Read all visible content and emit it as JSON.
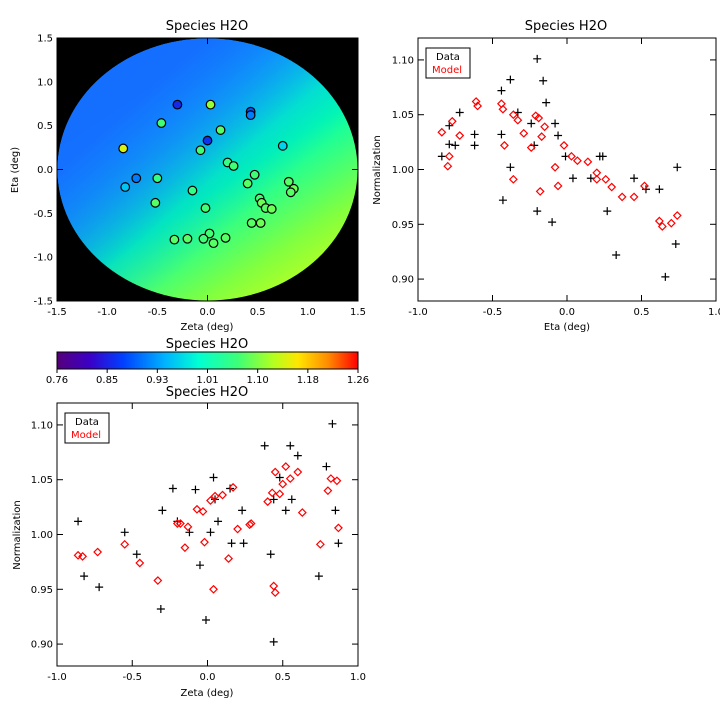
{
  "chart_data": [
    {
      "id": "map",
      "type": "scatter",
      "title": "Species H2O",
      "xlabel": "Zeta (deg)",
      "ylabel": "Eta (deg)",
      "xlim": [
        -1.5,
        1.5
      ],
      "ylim": [
        -1.5,
        1.5
      ],
      "xticks": [
        "-1.5",
        "-1.0",
        "-0.5",
        "0.0",
        "0.5",
        "1.0",
        "1.5"
      ],
      "yticks": [
        "-1.5",
        "-1.0",
        "-0.5",
        "0.0",
        "0.5",
        "1.0",
        "1.5"
      ],
      "background_field": "smooth gradient of normalization inside a circular field of radius ~1.5 deg",
      "points": [
        {
          "x": -0.3,
          "y": 0.74,
          "v": 0.85
        },
        {
          "x": 0.03,
          "y": 0.74,
          "v": 1.08
        },
        {
          "x": 0.43,
          "y": 0.66,
          "v": 0.88
        },
        {
          "x": 0.43,
          "y": 0.62,
          "v": 0.9
        },
        {
          "x": -0.46,
          "y": 0.53,
          "v": 1.04
        },
        {
          "x": 0.13,
          "y": 0.45,
          "v": 1.05
        },
        {
          "x": 0.0,
          "y": 0.33,
          "v": 0.86
        },
        {
          "x": -0.07,
          "y": 0.22,
          "v": 1.04
        },
        {
          "x": 0.75,
          "y": 0.27,
          "v": 0.95
        },
        {
          "x": -0.84,
          "y": 0.24,
          "v": 1.12
        },
        {
          "x": 0.2,
          "y": 0.08,
          "v": 1.03
        },
        {
          "x": 0.26,
          "y": 0.04,
          "v": 1.04
        },
        {
          "x": 0.47,
          "y": -0.06,
          "v": 1.04
        },
        {
          "x": -0.5,
          "y": -0.1,
          "v": 1.03
        },
        {
          "x": -0.71,
          "y": -0.1,
          "v": 0.9
        },
        {
          "x": 0.81,
          "y": -0.14,
          "v": 1.05
        },
        {
          "x": 0.4,
          "y": -0.16,
          "v": 1.05
        },
        {
          "x": -0.82,
          "y": -0.2,
          "v": 0.94
        },
        {
          "x": -0.15,
          "y": -0.24,
          "v": 1.03
        },
        {
          "x": 0.86,
          "y": -0.22,
          "v": 1.06
        },
        {
          "x": 0.83,
          "y": -0.26,
          "v": 1.05
        },
        {
          "x": 0.52,
          "y": -0.33,
          "v": 1.04
        },
        {
          "x": 0.54,
          "y": -0.38,
          "v": 1.06
        },
        {
          "x": -0.52,
          "y": -0.38,
          "v": 1.05
        },
        {
          "x": 0.58,
          "y": -0.44,
          "v": 1.05
        },
        {
          "x": 0.64,
          "y": -0.45,
          "v": 1.06
        },
        {
          "x": -0.02,
          "y": -0.44,
          "v": 1.04
        },
        {
          "x": 0.44,
          "y": -0.61,
          "v": 1.05
        },
        {
          "x": 0.53,
          "y": -0.61,
          "v": 1.06
        },
        {
          "x": 0.02,
          "y": -0.73,
          "v": 1.04
        },
        {
          "x": -0.2,
          "y": -0.79,
          "v": 1.05
        },
        {
          "x": -0.33,
          "y": -0.8,
          "v": 1.05
        },
        {
          "x": -0.04,
          "y": -0.79,
          "v": 1.04
        },
        {
          "x": 0.18,
          "y": -0.78,
          "v": 1.05
        },
        {
          "x": 0.06,
          "y": -0.84,
          "v": 1.05
        }
      ]
    },
    {
      "id": "colorbar",
      "type": "heatmap",
      "title": "Species H2O",
      "range": [
        0.76,
        1.26
      ],
      "ticks": [
        "0.76",
        "0.85",
        "0.93",
        "1.01",
        "1.10",
        "1.18",
        "1.26"
      ],
      "colormap": [
        "#55007a",
        "#3a00c8",
        "#0040ff",
        "#00b4ff",
        "#00ffd2",
        "#3cff78",
        "#b4ff1e",
        "#ffe600",
        "#ff8c00",
        "#ff0000"
      ]
    },
    {
      "id": "eta_norm",
      "type": "scatter",
      "title": "Species H2O",
      "xlabel": "Eta (deg)",
      "ylabel": "Normalization",
      "xlim": [
        -1.0,
        1.0
      ],
      "ylim": [
        0.88,
        1.12
      ],
      "xticks": [
        -1.0,
        -0.5,
        0.0,
        0.5,
        1.0
      ],
      "xtick_labels": [
        "-1.0",
        "-0.5",
        "0.0",
        "0.5",
        "1.0"
      ],
      "yticks": [
        0.9,
        0.95,
        1.0,
        1.05,
        1.1
      ],
      "ytick_labels": [
        "0.90",
        "0.95",
        "1.00",
        "1.05",
        "1.10"
      ],
      "legend": {
        "position": "top-left",
        "entries": [
          "Data",
          "Model"
        ],
        "colors": [
          "#000000",
          "#ff0000"
        ]
      },
      "series": [
        {
          "name": "Data",
          "marker": "plus",
          "color": "#000000",
          "x": [
            -0.84,
            -0.79,
            -0.79,
            -0.75,
            -0.72,
            -0.62,
            -0.62,
            -0.44,
            -0.44,
            -0.43,
            -0.38,
            -0.38,
            -0.33,
            -0.24,
            -0.22,
            -0.2,
            -0.2,
            -0.16,
            -0.14,
            -0.1,
            -0.08,
            -0.06,
            -0.01,
            0.04,
            0.16,
            0.22,
            0.24,
            0.27,
            0.33,
            0.45,
            0.53,
            0.62,
            0.66,
            0.73,
            0.74
          ],
          "y": [
            1.012,
            1.04,
            1.023,
            1.022,
            1.052,
            1.032,
            1.022,
            1.072,
            1.032,
            0.972,
            1.082,
            1.002,
            1.052,
            1.042,
            1.022,
            1.101,
            0.962,
            1.081,
            1.061,
            0.952,
            1.042,
            1.031,
            1.012,
            0.992,
            0.992,
            1.012,
            1.012,
            0.962,
            0.922,
            0.992,
            0.982,
            0.982,
            0.902,
            0.932,
            1.002
          ]
        },
        {
          "name": "Model",
          "marker": "diamond",
          "color": "#ff0000",
          "x": [
            -0.84,
            -0.8,
            -0.79,
            -0.77,
            -0.72,
            -0.61,
            -0.6,
            -0.44,
            -0.43,
            -0.42,
            -0.36,
            -0.36,
            -0.33,
            -0.29,
            -0.24,
            -0.21,
            -0.18,
            -0.19,
            -0.17,
            -0.15,
            -0.08,
            -0.06,
            -0.02,
            0.03,
            0.07,
            0.14,
            0.2,
            0.2,
            0.26,
            0.3,
            0.37,
            0.45,
            0.52,
            0.62,
            0.64,
            0.7,
            0.74
          ],
          "y": [
            1.034,
            1.003,
            1.012,
            1.044,
            1.031,
            1.062,
            1.058,
            1.06,
            1.055,
            1.022,
            1.05,
            0.991,
            1.045,
            1.033,
            1.02,
            1.049,
            0.98,
            1.047,
            1.03,
            1.039,
            1.002,
            0.985,
            1.022,
            1.012,
            1.008,
            1.007,
            0.991,
            0.997,
            0.991,
            0.984,
            0.975,
            0.975,
            0.985,
            0.953,
            0.948,
            0.951,
            0.958
          ]
        }
      ]
    },
    {
      "id": "zeta_norm",
      "type": "scatter",
      "title": "Species H2O",
      "xlabel": "Zeta (deg)",
      "ylabel": "Normalization",
      "xlim": [
        -1.0,
        1.0
      ],
      "ylim": [
        0.88,
        1.12
      ],
      "xticks": [
        -1.0,
        -0.5,
        0.0,
        0.5,
        1.0
      ],
      "xtick_labels": [
        "-1.0",
        "-0.5",
        "0.0",
        "0.5",
        "1.0"
      ],
      "yticks": [
        0.9,
        0.95,
        1.0,
        1.05,
        1.1
      ],
      "ytick_labels": [
        "0.90",
        "0.95",
        "1.00",
        "1.05",
        "1.10"
      ],
      "legend": {
        "position": "top-left",
        "entries": [
          "Data",
          "Model"
        ],
        "colors": [
          "#000000",
          "#ff0000"
        ]
      },
      "series": [
        {
          "name": "Data",
          "marker": "plus",
          "color": "#000000",
          "x": [
            -0.86,
            -0.82,
            -0.72,
            -0.55,
            -0.47,
            -0.31,
            -0.3,
            -0.23,
            -0.2,
            -0.12,
            -0.08,
            -0.05,
            -0.01,
            0.02,
            0.04,
            0.05,
            0.07,
            0.15,
            0.16,
            0.23,
            0.24,
            0.38,
            0.42,
            0.44,
            0.44,
            0.48,
            0.52,
            0.55,
            0.56,
            0.6,
            0.74,
            0.79,
            0.83,
            0.85,
            0.87
          ],
          "y": [
            1.012,
            0.962,
            0.952,
            1.002,
            0.982,
            0.932,
            1.022,
            1.042,
            1.012,
            1.002,
            1.041,
            0.972,
            0.922,
            1.002,
            1.052,
            1.032,
            1.012,
            1.042,
            0.992,
            1.022,
            0.992,
            1.081,
            0.982,
            1.032,
            0.902,
            1.052,
            1.022,
            1.081,
            1.032,
            1.072,
            0.962,
            1.062,
            1.101,
            1.022,
            0.992
          ]
        },
        {
          "name": "Model",
          "marker": "diamond",
          "color": "#ff0000",
          "x": [
            -0.86,
            -0.83,
            -0.73,
            -0.55,
            -0.45,
            -0.33,
            -0.2,
            -0.18,
            -0.15,
            -0.13,
            -0.07,
            -0.03,
            -0.02,
            0.02,
            0.04,
            0.05,
            0.1,
            0.14,
            0.17,
            0.2,
            0.28,
            0.29,
            0.4,
            0.43,
            0.44,
            0.45,
            0.45,
            0.48,
            0.5,
            0.52,
            0.55,
            0.6,
            0.63,
            0.75,
            0.8,
            0.82,
            0.86,
            0.87
          ],
          "y": [
            0.981,
            0.98,
            0.984,
            0.991,
            0.974,
            0.958,
            1.01,
            1.01,
            0.988,
            1.007,
            1.023,
            1.021,
            0.993,
            1.031,
            0.95,
            1.035,
            1.036,
            0.978,
            1.043,
            1.005,
            1.009,
            1.01,
            1.03,
            1.038,
            0.953,
            0.947,
            1.057,
            1.037,
            1.046,
            1.062,
            1.051,
            1.057,
            1.02,
            0.991,
            1.04,
            1.051,
            1.049,
            1.006
          ]
        }
      ]
    }
  ]
}
